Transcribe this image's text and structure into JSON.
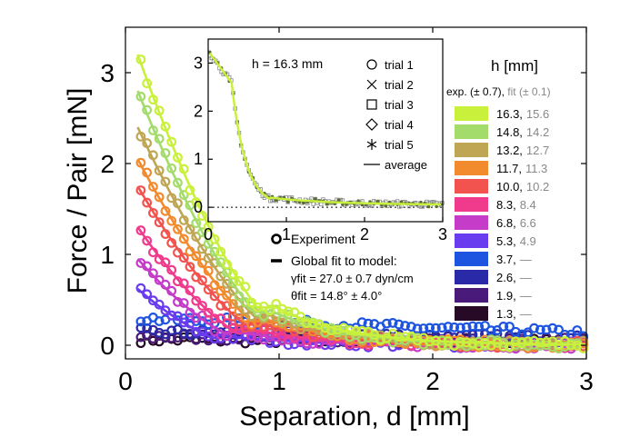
{
  "chart_data": {
    "type": "scatter",
    "title": "",
    "xlabel": "Separation, d [mm]",
    "ylabel": "Force / Pair  [mN]",
    "xlim": [
      0,
      3
    ],
    "ylim": [
      -0.15,
      3.5
    ],
    "xticks": [
      "0",
      "1",
      "2",
      "3"
    ],
    "yticks": [
      "0",
      "1",
      "2",
      "3"
    ],
    "legend": {
      "experiment_label": "Experiment",
      "fit_label": "Global fit to model:",
      "gamma_text": "γfit = 27.0 ± 0.7 dyn/cm",
      "theta_text": "θfit = 14.8° ± 4.0°"
    },
    "h_legend": {
      "title": "h [mm]",
      "subtitle_exp": "exp. (± 0.7),",
      "subtitle_fit": "fit (± 0.1)",
      "entries": [
        {
          "exp": "16.3,",
          "fit": "15.6",
          "color": "#c9f03a",
          "f0": 3.2,
          "p": 0.95,
          "tail": 0.02
        },
        {
          "exp": "14.8,",
          "fit": "14.2",
          "color": "#a3dc6a",
          "f0": 2.8,
          "p": 0.93,
          "tail": 0.02
        },
        {
          "exp": "13.2,",
          "fit": "12.7",
          "color": "#bfa655",
          "f0": 2.4,
          "p": 0.93,
          "tail": 0.02
        },
        {
          "exp": "11.7,",
          "fit": "11.3",
          "color": "#f28a2e",
          "f0": 2.05,
          "p": 0.9,
          "tail": 0.02
        },
        {
          "exp": "10.0,",
          "fit": "10.2",
          "color": "#f2534f",
          "f0": 1.75,
          "p": 0.85,
          "tail": 0.02
        },
        {
          "exp": "8.3,",
          "fit": "8.4",
          "color": "#f03a8c",
          "f0": 1.3,
          "p": 0.75,
          "tail": 0.02
        },
        {
          "exp": "6.8,",
          "fit": "6.6",
          "color": "#c43cc8",
          "f0": 0.95,
          "p": 0.7,
          "tail": 0.02
        },
        {
          "exp": "5.3,",
          "fit": "4.9",
          "color": "#6a3cf0",
          "f0": 0.62,
          "p": 0.6,
          "tail": 0.02
        },
        {
          "exp": "3.7,",
          "fit": "—",
          "color": "#1d54e0",
          "f0": 0.35,
          "p": 0.0,
          "tail": 0.3
        },
        {
          "exp": "2.6,",
          "fit": "—",
          "color": "#2a2aa8",
          "f0": 0.18,
          "p": 0.0,
          "tail": 0.15
        },
        {
          "exp": "1.9,",
          "fit": "—",
          "color": "#4a1a7a",
          "f0": 0.1,
          "p": 0.0,
          "tail": 0.1
        },
        {
          "exp": "1.3,",
          "fit": "—",
          "color": "#260a26",
          "f0": 0.07,
          "p": 0.0,
          "tail": 0.07
        }
      ]
    },
    "inset": {
      "annotation": "h = 16.3 mm",
      "xlim": [
        0,
        3
      ],
      "ylim": [
        -0.3,
        3.5
      ],
      "xticks": [
        "0",
        "1",
        "2",
        "3"
      ],
      "yticks": [
        "0",
        "1",
        "2",
        "3"
      ],
      "legend": [
        "trial 1",
        "trial 2",
        "trial 3",
        "trial 4",
        "trial 5",
        "average"
      ],
      "color": "#c9f03a"
    }
  }
}
